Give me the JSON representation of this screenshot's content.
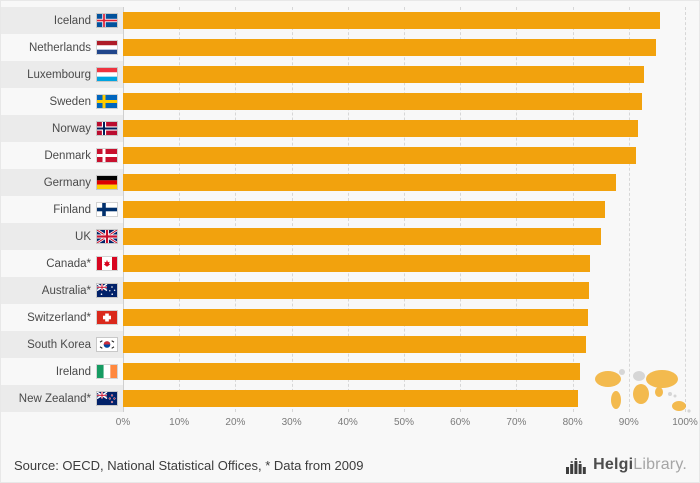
{
  "chart_data": {
    "type": "bar",
    "orientation": "horizontal",
    "title": "",
    "xlabel": "",
    "ylabel": "",
    "xlim": [
      0,
      100
    ],
    "grid": true,
    "bar_color": "#F2A20D",
    "categories": [
      "Iceland",
      "Netherlands",
      "Luxembourg",
      "Sweden",
      "Norway",
      "Denmark",
      "Germany",
      "Finland",
      "UK",
      "Canada*",
      "Australia*",
      "Switzerland*",
      "South Korea",
      "Ireland",
      "New Zealand*"
    ],
    "values": [
      95.5,
      94.8,
      92.7,
      92.3,
      91.7,
      91.3,
      87.7,
      85.8,
      85.0,
      83.1,
      82.9,
      82.8,
      82.3,
      81.3,
      80.9
    ],
    "unit": "%",
    "flags": [
      "iceland",
      "netherlands",
      "luxembourg",
      "sweden",
      "norway",
      "denmark",
      "germany",
      "finland",
      "uk",
      "canada",
      "australia",
      "switzerland",
      "south-korea",
      "ireland",
      "new-zealand"
    ],
    "x_ticks": [
      "0%",
      "10%",
      "20%",
      "30%",
      "40%",
      "50%",
      "60%",
      "70%",
      "80%",
      "90%",
      "100%"
    ],
    "legend": []
  },
  "footer": {
    "source": "Source: OECD, National Statistical Offices, * Data from 2009",
    "logo": {
      "name_primary": "Helgi",
      "name_secondary": "Library."
    }
  }
}
